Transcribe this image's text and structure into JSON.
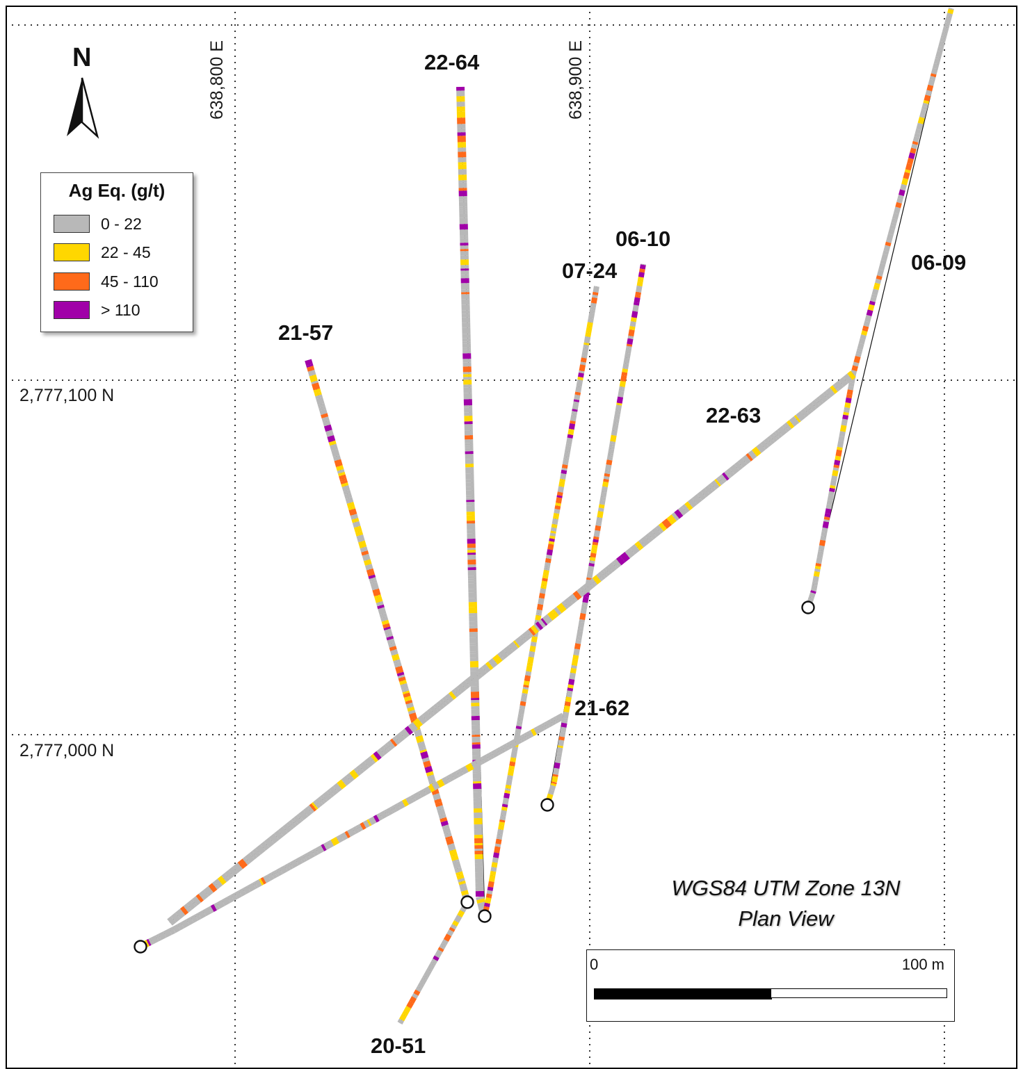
{
  "map": {
    "grid_labels": {
      "easting": [
        "638,800 E",
        "638,900 E"
      ],
      "northing": [
        "2,777,100 N",
        "2,777,000 N"
      ]
    },
    "north_arrow": {
      "letter": "N",
      "icon": "north-arrow-icon"
    },
    "legend": {
      "title": "Ag Eq. (g/t)",
      "items": [
        {
          "label": "0 - 22",
          "color": "#b8b8b8"
        },
        {
          "label": "22 - 45",
          "color": "#ffd700"
        },
        {
          "label": "45 - 110",
          "color": "#ff6a1a"
        },
        {
          "label": "> 110",
          "color": "#a000a8"
        }
      ]
    },
    "projection": {
      "line1": "WGS84 UTM Zone 13N",
      "line2": "Plan View"
    },
    "scale_bar": {
      "start_label": "0",
      "end_label": "100 m"
    },
    "drill_holes": [
      {
        "id": "22-64"
      },
      {
        "id": "06-10"
      },
      {
        "id": "07-24"
      },
      {
        "id": "06-09"
      },
      {
        "id": "21-57"
      },
      {
        "id": "22-63"
      },
      {
        "id": "21-62"
      },
      {
        "id": "20-51"
      }
    ]
  }
}
